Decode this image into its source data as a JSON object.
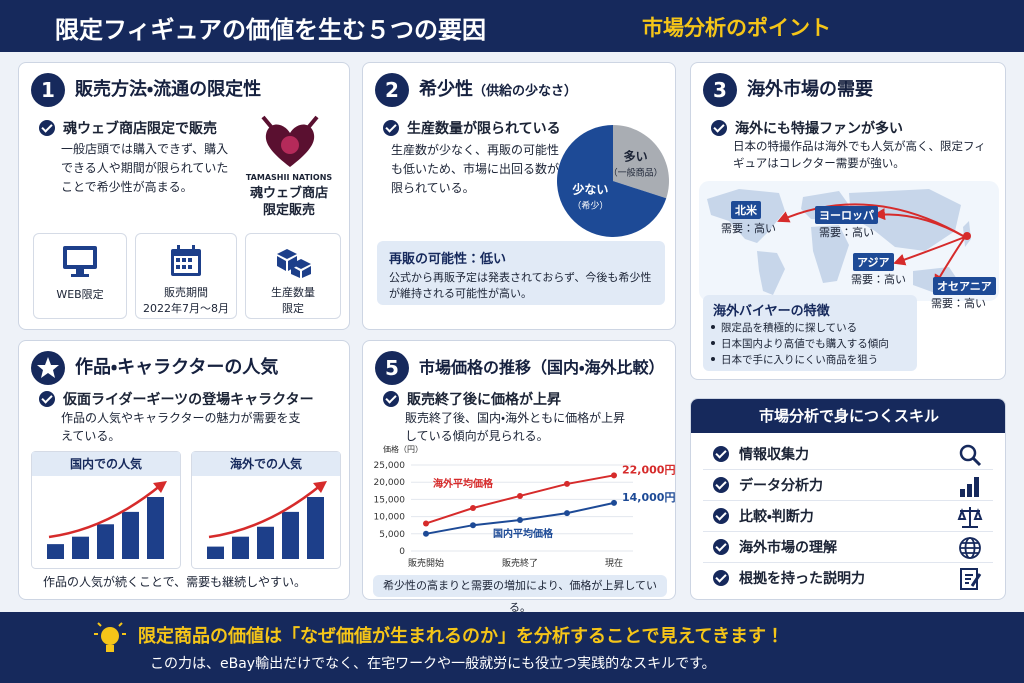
{
  "header": {
    "title": "限定フィギュアの価値を生む５つの要因",
    "subtitle": "市場分析のポイント"
  },
  "factors": [
    {
      "number": "1",
      "title": "販売方法・流通の限定性",
      "point": "魂ウェブ商店限定で販売",
      "description": "一般店頭では購入できず、購入できる人や期間が限られていたことで希少性が高まる。",
      "logo": {
        "brand": "TAMASHII NATIONS",
        "caption": [
          "魂ウェブ商店",
          "限定販売"
        ]
      },
      "features": [
        [
          "WEB限定"
        ],
        [
          "販売期間",
          "2022年7月～8月"
        ],
        [
          "生産数量",
          "限定"
        ]
      ]
    },
    {
      "number": "2",
      "title": "希少性",
      "title_note": "（供給の少なさ）",
      "point": "生産数量が限られている",
      "description": "生産数が少なく、再販の可能性も低いため、市場に出回る数が限られている。",
      "chart_data": {
        "type": "pie",
        "categories": [
          "多い",
          "少ない"
        ],
        "sublabels": [
          "（一般商品）",
          "（希少）"
        ],
        "values": [
          30,
          70
        ],
        "colors": [
          "#a9adb3",
          "#1d4a96"
        ]
      },
      "box": {
        "title": "再販の可能性：低い",
        "text": "公式から再販予定は発表されておらず、今後も希少性が維持される可能性が高い。"
      }
    },
    {
      "number": "3",
      "title": "海外市場の需要",
      "point": "海外にも特撮ファンが多い",
      "description": "日本の特撮作品は海外でも人気が高く、限定フィギュアはコレクター需要が強い。",
      "regions": [
        {
          "name": "北米",
          "demand": "需要：高い"
        },
        {
          "name": "ヨーロッパ",
          "demand": "需要：高い"
        },
        {
          "name": "アジア",
          "demand": "需要：高い"
        },
        {
          "name": "オセアニア",
          "demand": "需要：高い"
        }
      ],
      "buyer_box": {
        "title": "海外バイヤーの特徴",
        "items": [
          "限定品を積極的に探している",
          "日本国内より高値でも購入する傾向",
          "日本で手に入りにくい商品を狙う"
        ]
      }
    },
    {
      "title": "作品・キャラクターの人気",
      "point": "仮面ライダーギーツの登場キャラクター",
      "description": "作品の人気やキャラクターの魅力が需要を支えている。",
      "charts": [
        {
          "type": "bar",
          "title": "国内での人気",
          "values": [
            12,
            18,
            28,
            38,
            50
          ],
          "color": "#1d3f8a"
        },
        {
          "type": "bar",
          "title": "海外での人気",
          "values": [
            10,
            18,
            26,
            38,
            50
          ],
          "color": "#1d3f8a"
        }
      ],
      "footer": "作品の人気が続くことで、需要も継続しやすい。"
    },
    {
      "number": "5",
      "title": "市場価格の推移（国内・海外比較）",
      "point": "販売終了後に価格が上昇",
      "description": "販売終了後、国内・海外ともに価格が上昇している傾向が見られる。",
      "chart_data": {
        "type": "line",
        "y_label": "価格（円）",
        "categories": [
          "販売開始",
          null,
          "販売終了",
          null,
          "現在"
        ],
        "series": [
          {
            "name": "海外平均価格",
            "color": "#d62b2b",
            "values": [
              8000,
              12500,
              16000,
              19500,
              22000
            ],
            "value_labels": [
              null,
              null,
              null,
              null,
              "22,000円"
            ]
          },
          {
            "name": "国内平均価格",
            "color": "#1d4a96",
            "values": [
              5000,
              7500,
              9000,
              11000,
              14000
            ],
            "value_labels": [
              null,
              null,
              null,
              null,
              "14,000円"
            ]
          }
        ],
        "ylim": [
          0,
          25000
        ],
        "yticks": [
          0,
          {
            "value": 5000,
            "label": "5,000"
          },
          {
            "value": 10000,
            "label": "10,000"
          },
          {
            "value": 15000,
            "label": "15,000"
          },
          {
            "value": 20000,
            "label": "20,000"
          },
          {
            "value": 25000,
            "label": "25,000"
          }
        ],
        "grid": true
      },
      "footer": "希少性の高まりと需要の増加により、価格が上昇している。"
    }
  ],
  "skills": {
    "title": "市場分析で身につくスキル",
    "items": [
      "情報収集力",
      "データ分析力",
      "比較・判断力",
      "海外市場の理解",
      "根拠を持った説明力"
    ]
  },
  "banner": {
    "message": "限定商品の価値は「なぜ価値が生まれるのか」を分析することで見えてきます！",
    "sub": "この力は、eBay輸出だけでなく、在宅ワークや一般就労にも役立つ実践的なスキルです。"
  }
}
